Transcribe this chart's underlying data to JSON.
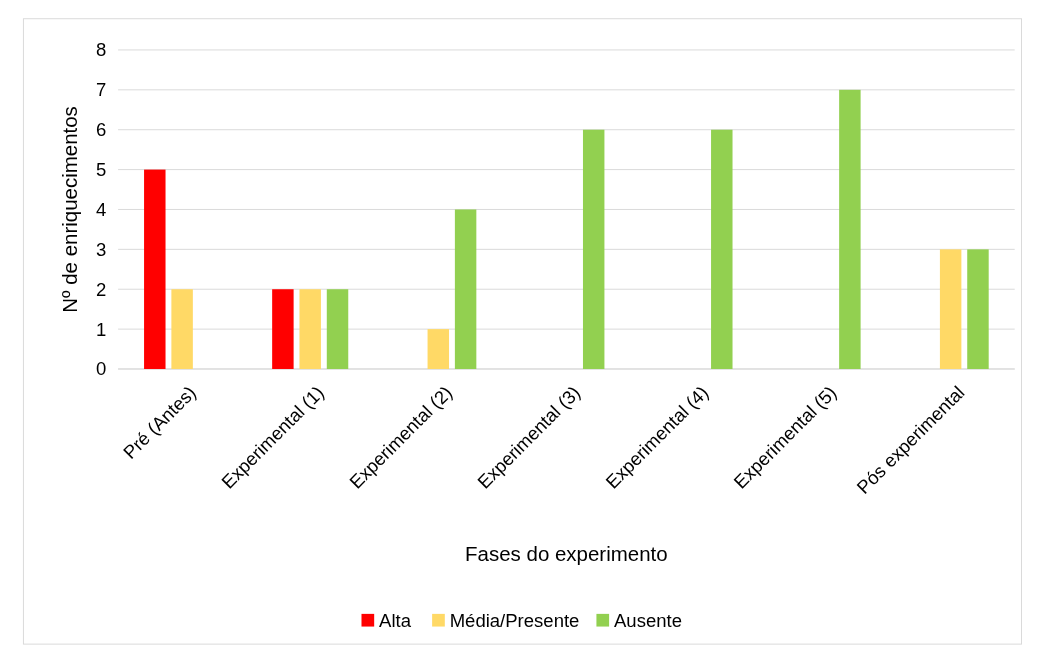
{
  "chart_data": {
    "type": "bar",
    "xlabel": "Fases do experimento",
    "ylabel": "Nº de enriquecimentos",
    "categories": [
      "Pré (Antes)",
      "Experimental (1)",
      "Experimental (2)",
      "Experimental (3)",
      "Experimental (4)",
      "Experimental (5)",
      "Pós experimental"
    ],
    "series": [
      {
        "name": "Alta",
        "color": "#ff0000",
        "values": [
          5,
          2,
          0,
          0,
          0,
          0,
          0
        ]
      },
      {
        "name": "Média/Presente",
        "color": "#ffd966",
        "values": [
          2,
          2,
          1,
          0,
          0,
          0,
          3
        ]
      },
      {
        "name": "Ausente",
        "color": "#92d050",
        "values": [
          0,
          2,
          4,
          6,
          6,
          7,
          3
        ]
      }
    ],
    "ylim": [
      0,
      8
    ],
    "yticks": [
      0,
      1,
      2,
      3,
      4,
      5,
      6,
      7,
      8
    ],
    "grid": "y",
    "legend": "bottom"
  }
}
